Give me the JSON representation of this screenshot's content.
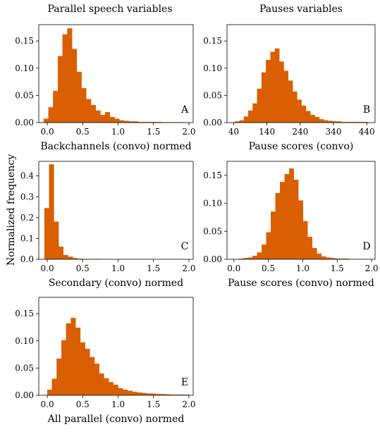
{
  "figure": {
    "column_titles": [
      "Parallel speech variables",
      "Pauses variables"
    ],
    "shared_ylabel": "Normalized frequency",
    "bar_color": "#d95f02"
  },
  "chart_data": [
    {
      "type": "bar",
      "panel_label": "A",
      "xlabel": "Backchannels (convo) normed",
      "ylabel": "",
      "xlim": [
        -0.12,
        2.06
      ],
      "ylim": [
        0,
        0.18
      ],
      "x_ticks": [
        0.0,
        0.5,
        1.0,
        1.5,
        2.0
      ],
      "x_tick_labels": [
        "0.0",
        "0.5",
        "1.0",
        "1.5",
        "2.0"
      ],
      "y_ticks": [
        0,
        0.05,
        0.1,
        0.15
      ],
      "y_tick_labels": [
        "0.00",
        "0.05",
        "0.10",
        "0.15"
      ],
      "bin_start": -0.05,
      "bin_width": 0.0667,
      "values": [
        0.007,
        0.028,
        0.058,
        0.122,
        0.162,
        0.173,
        0.135,
        0.093,
        0.063,
        0.043,
        0.032,
        0.022,
        0.014,
        0.019,
        0.01,
        0.007,
        0.004,
        0.003,
        0.002,
        0.002,
        0.001,
        0.001,
        0.001,
        0.001,
        0.001,
        0.0005,
        0.0005,
        0.0005,
        0.0005,
        0.0005
      ]
    },
    {
      "type": "bar",
      "panel_label": "B",
      "xlabel": "Pause scores (convo)",
      "ylabel": "",
      "xlim": [
        20,
        465
      ],
      "ylim": [
        0,
        0.18
      ],
      "x_ticks": [
        40,
        140,
        240,
        340,
        440
      ],
      "x_tick_labels": [
        "40",
        "140",
        "240",
        "340",
        "440"
      ],
      "y_ticks": [
        0,
        0.05,
        0.1,
        0.15
      ],
      "y_tick_labels": [
        "0.00",
        "0.05",
        "0.10",
        "0.15"
      ],
      "bin_start": 44,
      "bin_width": 13.33,
      "values": [
        0.002,
        0.004,
        0.011,
        0.022,
        0.035,
        0.062,
        0.092,
        0.115,
        0.13,
        0.136,
        0.112,
        0.095,
        0.077,
        0.057,
        0.042,
        0.031,
        0.021,
        0.014,
        0.01,
        0.006,
        0.004,
        0.003,
        0.002,
        0.002,
        0.001,
        0.001,
        0.001,
        0.001,
        0.001,
        0.001
      ]
    },
    {
      "type": "bar",
      "panel_label": "C",
      "xlabel": "Secondary (convo) normed",
      "ylabel": "",
      "xlim": [
        -0.12,
        2.06
      ],
      "ylim": [
        0,
        0.47
      ],
      "x_ticks": [
        0.0,
        0.5,
        1.0,
        1.5,
        2.0
      ],
      "x_tick_labels": [
        "0.0",
        "0.5",
        "1.0",
        "1.5",
        "2.0"
      ],
      "y_ticks": [
        0,
        0.1,
        0.2,
        0.3,
        0.4
      ],
      "y_tick_labels": [
        "0.0",
        "0.1",
        "0.2",
        "0.3",
        "0.4"
      ],
      "bin_start": -0.04,
      "bin_width": 0.0667,
      "values": [
        0.245,
        0.455,
        0.18,
        0.06,
        0.02,
        0.012,
        0.005,
        0.002,
        0.001,
        0.001,
        0.001,
        0.0005
      ]
    },
    {
      "type": "bar",
      "panel_label": "D",
      "xlabel": "Pause scores (convo) normed",
      "ylabel": "",
      "xlim": [
        -0.1,
        2.05
      ],
      "ylim": [
        0,
        0.175
      ],
      "x_ticks": [
        0.0,
        0.5,
        1.0,
        1.5,
        2.0
      ],
      "x_tick_labels": [
        "0.0",
        "0.5",
        "1.0",
        "1.5",
        "2.0"
      ],
      "y_ticks": [
        0,
        0.05,
        0.1,
        0.15
      ],
      "y_tick_labels": [
        "0.00",
        "0.05",
        "0.10",
        "0.15"
      ],
      "bin_start": 0.07,
      "bin_width": 0.0667,
      "values": [
        0.001,
        0.002,
        0.003,
        0.006,
        0.012,
        0.026,
        0.048,
        0.085,
        0.118,
        0.138,
        0.152,
        0.162,
        0.142,
        0.105,
        0.068,
        0.04,
        0.02,
        0.01,
        0.005,
        0.003,
        0.002,
        0.001,
        0.001,
        0.001
      ]
    },
    {
      "type": "bar",
      "panel_label": "E",
      "xlabel": "All parallel (convo) normed",
      "ylabel": "",
      "xlim": [
        -0.12,
        2.06
      ],
      "ylim": [
        0,
        0.18
      ],
      "x_ticks": [
        0.0,
        0.5,
        1.0,
        1.5,
        2.0
      ],
      "x_tick_labels": [
        "0.0",
        "0.5",
        "1.0",
        "1.5",
        "2.0"
      ],
      "y_ticks": [
        0,
        0.05,
        0.1,
        0.15
      ],
      "y_tick_labels": [
        "0.00",
        "0.05",
        "0.10",
        "0.15"
      ],
      "bin_start": 0.0,
      "bin_width": 0.0667,
      "values": [
        0.01,
        0.03,
        0.067,
        0.101,
        0.132,
        0.142,
        0.124,
        0.097,
        0.085,
        0.07,
        0.058,
        0.04,
        0.031,
        0.024,
        0.019,
        0.013,
        0.01,
        0.008,
        0.006,
        0.005,
        0.004,
        0.003,
        0.003,
        0.002,
        0.002,
        0.0015,
        0.001,
        0.001,
        0.001,
        0.001
      ]
    }
  ]
}
